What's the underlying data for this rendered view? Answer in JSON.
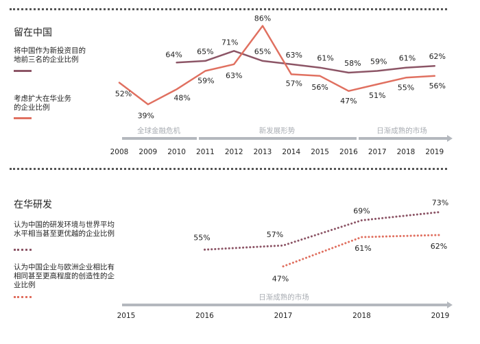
{
  "section1": {
    "title": "留在中国",
    "legend": [
      {
        "label_lines": [
          "将中国作为新投资目的",
          "地前三名的企业比例"
        ],
        "color": "#8c5566",
        "style": "solid"
      },
      {
        "label_lines": [
          "考虑扩大在华业务",
          "的企业比例"
        ],
        "color": "#e07060",
        "style": "solid"
      }
    ]
  },
  "section2": {
    "title": "在华研发",
    "legend": [
      {
        "label_lines": [
          "认为中国的研发环境与世界平均",
          "水平相当甚至更优越的企业比例"
        ],
        "color": "#8c5566",
        "style": "dotted"
      },
      {
        "label_lines": [
          "认为中国企业与欧洲企业相比有",
          "相同甚至更高程度的创造性的企",
          "业比例"
        ],
        "color": "#e07060",
        "style": "dotted"
      }
    ]
  },
  "chart_data": [
    {
      "type": "line",
      "title": "留在中国",
      "x": [
        2008,
        2009,
        2010,
        2011,
        2012,
        2013,
        2014,
        2015,
        2016,
        2017,
        2018,
        2019
      ],
      "xlabels": [
        "2008",
        "2009",
        "2010",
        "2011",
        "2012",
        "2013",
        "2014",
        "2015",
        "2016",
        "2017",
        "2018",
        "2019"
      ],
      "ylim": [
        35,
        90
      ],
      "series": [
        {
          "name": "将中国作为新投资目的地前三名的企业比例",
          "color": "#8c5566",
          "style": "solid",
          "points": [
            {
              "x": 2010,
              "y": 64,
              "label": "64%"
            },
            {
              "x": 2011,
              "y": 65,
              "label": "65%"
            },
            {
              "x": 2012,
              "y": 71,
              "label": "71%"
            },
            {
              "x": 2013,
              "y": 65,
              "label": "65%"
            },
            {
              "x": 2014,
              "y": 63,
              "label": "63%"
            },
            {
              "x": 2015,
              "y": 61,
              "label": "61%"
            },
            {
              "x": 2016,
              "y": 58,
              "label": "58%"
            },
            {
              "x": 2017,
              "y": 59,
              "label": "59%"
            },
            {
              "x": 2018,
              "y": 61,
              "label": "61%"
            },
            {
              "x": 2019,
              "y": 62,
              "label": "62%"
            }
          ]
        },
        {
          "name": "考虑扩大在华业务的企业比例",
          "color": "#e07060",
          "style": "solid",
          "points": [
            {
              "x": 2008,
              "y": 52,
              "label": "52%"
            },
            {
              "x": 2009,
              "y": 39,
              "label": "39%"
            },
            {
              "x": 2010,
              "y": 48,
              "label": "48%"
            },
            {
              "x": 2011,
              "y": 59,
              "label": "59%"
            },
            {
              "x": 2012,
              "y": 63,
              "label": "63%"
            },
            {
              "x": 2013,
              "y": 86,
              "label": "86%"
            },
            {
              "x": 2014,
              "y": 57,
              "label": "57%"
            },
            {
              "x": 2015,
              "y": 56,
              "label": "56%"
            },
            {
              "x": 2016,
              "y": 47,
              "label": "47%"
            },
            {
              "x": 2017,
              "y": 51,
              "label": "51%"
            },
            {
              "x": 2018,
              "y": 55,
              "label": "55%"
            },
            {
              "x": 2019,
              "y": 56,
              "label": "56%"
            }
          ]
        }
      ],
      "periods": [
        {
          "label": "全球金融危机",
          "from": 2008,
          "to": 2010
        },
        {
          "label": "新发展形势",
          "from": 2011,
          "to": 2016
        },
        {
          "label": "日渐成熟的市场",
          "from": 2016,
          "to": 2019
        }
      ]
    },
    {
      "type": "line",
      "title": "在华研发",
      "x": [
        2015,
        2016,
        2017,
        2018,
        2019
      ],
      "xlabels": [
        "2015",
        "2016",
        "2017",
        "2018",
        "2019"
      ],
      "ylim": [
        40,
        80
      ],
      "series": [
        {
          "name": "认为中国的研发环境与世界平均水平相当甚至更优越的企业比例",
          "color": "#8c5566",
          "style": "dotted",
          "points": [
            {
              "x": 2016,
              "y": 55,
              "label": "55%"
            },
            {
              "x": 2017,
              "y": 57,
              "label": "57%"
            },
            {
              "x": 2018,
              "y": 69,
              "label": "69%"
            },
            {
              "x": 2019,
              "y": 73,
              "label": "73%"
            }
          ]
        },
        {
          "name": "认为中国企业与欧洲企业相比有相同甚至更高程度的创造性的企业比例",
          "color": "#e07060",
          "style": "dotted",
          "points": [
            {
              "x": 2017,
              "y": 47,
              "label": "47%"
            },
            {
              "x": 2018,
              "y": 61,
              "label": "61%"
            },
            {
              "x": 2019,
              "y": 62,
              "label": "62%"
            }
          ]
        }
      ],
      "periods": [
        {
          "label": "日渐成熟的市场",
          "from": 2015,
          "to": 2019
        }
      ]
    }
  ]
}
